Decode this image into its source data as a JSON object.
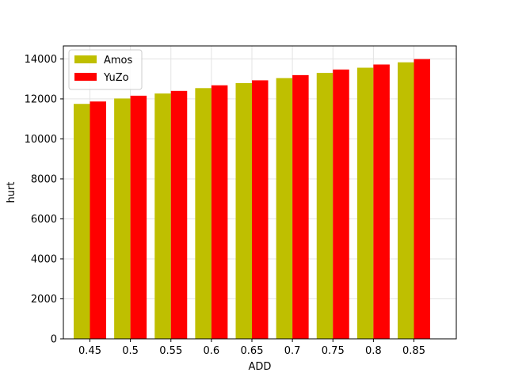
{
  "chart_data": {
    "type": "bar",
    "title": "",
    "xlabel": "ADD",
    "ylabel": "hurt",
    "categories": [
      "0.45",
      "0.5",
      "0.55",
      "0.6",
      "0.65",
      "0.7",
      "0.75",
      "0.8",
      "0.85"
    ],
    "series": [
      {
        "name": "Amos",
        "color": "#bfbf00",
        "values": [
          11750,
          12020,
          12270,
          12540,
          12790,
          13040,
          13300,
          13560,
          13830
        ]
      },
      {
        "name": "YuZo",
        "color": "#ff0000",
        "values": [
          11870,
          12160,
          12400,
          12680,
          12930,
          13190,
          13470,
          13720,
          13990
        ]
      }
    ],
    "ylim": [
      0,
      14650
    ],
    "yticks": [
      0,
      2000,
      4000,
      6000,
      8000,
      10000,
      12000,
      14000
    ],
    "ytick_labels": [
      "0",
      "2000",
      "4000",
      "6000",
      "8000",
      "10000",
      "12000",
      "14000"
    ],
    "grid": true,
    "legend_position": "top-left"
  }
}
